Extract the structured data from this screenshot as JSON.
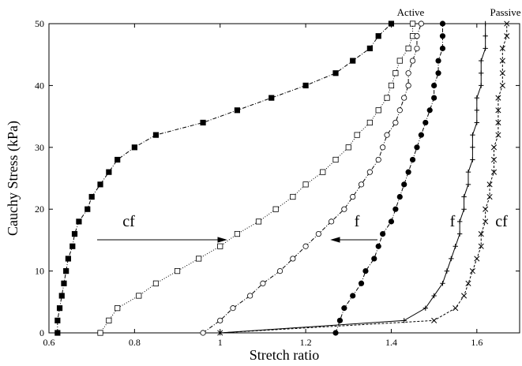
{
  "chart_data": {
    "type": "line",
    "x_label": "Stretch ratio",
    "y_label": "Cauchy Stress (kPa)",
    "xlim": [
      0.6,
      1.7
    ],
    "ylim": [
      0,
      50
    ],
    "xticks": [
      0.6,
      0.8,
      1,
      1.2,
      1.4,
      1.6
    ],
    "yticks": [
      0,
      10,
      20,
      30,
      40,
      50
    ],
    "annotations": [
      "Active",
      "Passive",
      "cf",
      "f",
      "f",
      "cf"
    ],
    "series": [
      {
        "marker": "filled-square",
        "dash": "5,2,1,2",
        "x": [
          0.62,
          0.62,
          0.625,
          0.63,
          0.635,
          0.64,
          0.645,
          0.655,
          0.66,
          0.67,
          0.69,
          0.7,
          0.72,
          0.74,
          0.76,
          0.8,
          0.85,
          0.96,
          1.04,
          1.12,
          1.2,
          1.27,
          1.31,
          1.35,
          1.37,
          1.4
        ],
        "values": [
          0,
          2,
          4,
          6,
          8,
          10,
          12,
          14,
          16,
          18,
          20,
          22,
          24,
          26,
          28,
          30,
          32,
          34,
          36,
          38,
          40,
          42,
          44,
          46,
          48,
          50
        ]
      },
      {
        "marker": "open-square",
        "dash": "1,2",
        "x": [
          0.72,
          0.74,
          0.76,
          0.81,
          0.85,
          0.9,
          0.95,
          1.0,
          1.04,
          1.09,
          1.13,
          1.17,
          1.2,
          1.24,
          1.27,
          1.3,
          1.32,
          1.35,
          1.37,
          1.39,
          1.4,
          1.41,
          1.42,
          1.44,
          1.45,
          1.45
        ],
        "values": [
          0,
          2,
          4,
          6,
          8,
          10,
          12,
          14,
          16,
          18,
          20,
          22,
          24,
          26,
          28,
          30,
          32,
          34,
          36,
          38,
          40,
          42,
          44,
          46,
          48,
          50
        ]
      },
      {
        "marker": "open-circle",
        "dash": "5,2,1,2",
        "x": [
          0.96,
          1,
          1.03,
          1.07,
          1.1,
          1.14,
          1.17,
          1.2,
          1.23,
          1.26,
          1.29,
          1.31,
          1.33,
          1.35,
          1.37,
          1.38,
          1.39,
          1.41,
          1.42,
          1.43,
          1.44,
          1.44,
          1.45,
          1.46,
          1.46,
          1.47
        ],
        "values": [
          0,
          2,
          4,
          6,
          8,
          10,
          12,
          14,
          16,
          18,
          20,
          22,
          24,
          26,
          28,
          30,
          32,
          34,
          36,
          38,
          40,
          42,
          44,
          46,
          48,
          50
        ]
      },
      {
        "marker": "filled-circle",
        "dash": "5,2,1,2",
        "x": [
          1.27,
          1.28,
          1.29,
          1.31,
          1.33,
          1.34,
          1.36,
          1.37,
          1.38,
          1.4,
          1.41,
          1.42,
          1.43,
          1.44,
          1.45,
          1.46,
          1.47,
          1.48,
          1.49,
          1.5,
          1.5,
          1.51,
          1.51,
          1.52,
          1.52,
          1.52
        ],
        "values": [
          0,
          2,
          4,
          6,
          8,
          10,
          12,
          14,
          16,
          18,
          20,
          22,
          24,
          26,
          28,
          30,
          32,
          34,
          36,
          38,
          40,
          42,
          44,
          46,
          48,
          50
        ]
      },
      {
        "marker": "plus",
        "dash": "none",
        "x": [
          1,
          1.43,
          1.48,
          1.5,
          1.52,
          1.53,
          1.54,
          1.55,
          1.56,
          1.56,
          1.57,
          1.57,
          1.58,
          1.58,
          1.59,
          1.59,
          1.59,
          1.6,
          1.6,
          1.6,
          1.61,
          1.61,
          1.61,
          1.62,
          1.62,
          1.62
        ],
        "values": [
          0,
          2,
          4,
          6,
          8,
          10,
          12,
          14,
          16,
          18,
          20,
          22,
          24,
          26,
          28,
          30,
          32,
          34,
          36,
          38,
          40,
          42,
          44,
          46,
          48,
          50
        ]
      },
      {
        "marker": "cross",
        "dash": "3,2",
        "x": [
          1,
          1.5,
          1.55,
          1.57,
          1.58,
          1.59,
          1.6,
          1.61,
          1.61,
          1.62,
          1.62,
          1.63,
          1.63,
          1.64,
          1.64,
          1.64,
          1.65,
          1.65,
          1.65,
          1.65,
          1.66,
          1.66,
          1.66,
          1.66,
          1.67,
          1.67
        ],
        "values": [
          0,
          2,
          4,
          6,
          8,
          10,
          12,
          14,
          16,
          18,
          20,
          22,
          24,
          26,
          28,
          30,
          32,
          34,
          36,
          38,
          40,
          42,
          44,
          46,
          48,
          50
        ]
      }
    ]
  }
}
